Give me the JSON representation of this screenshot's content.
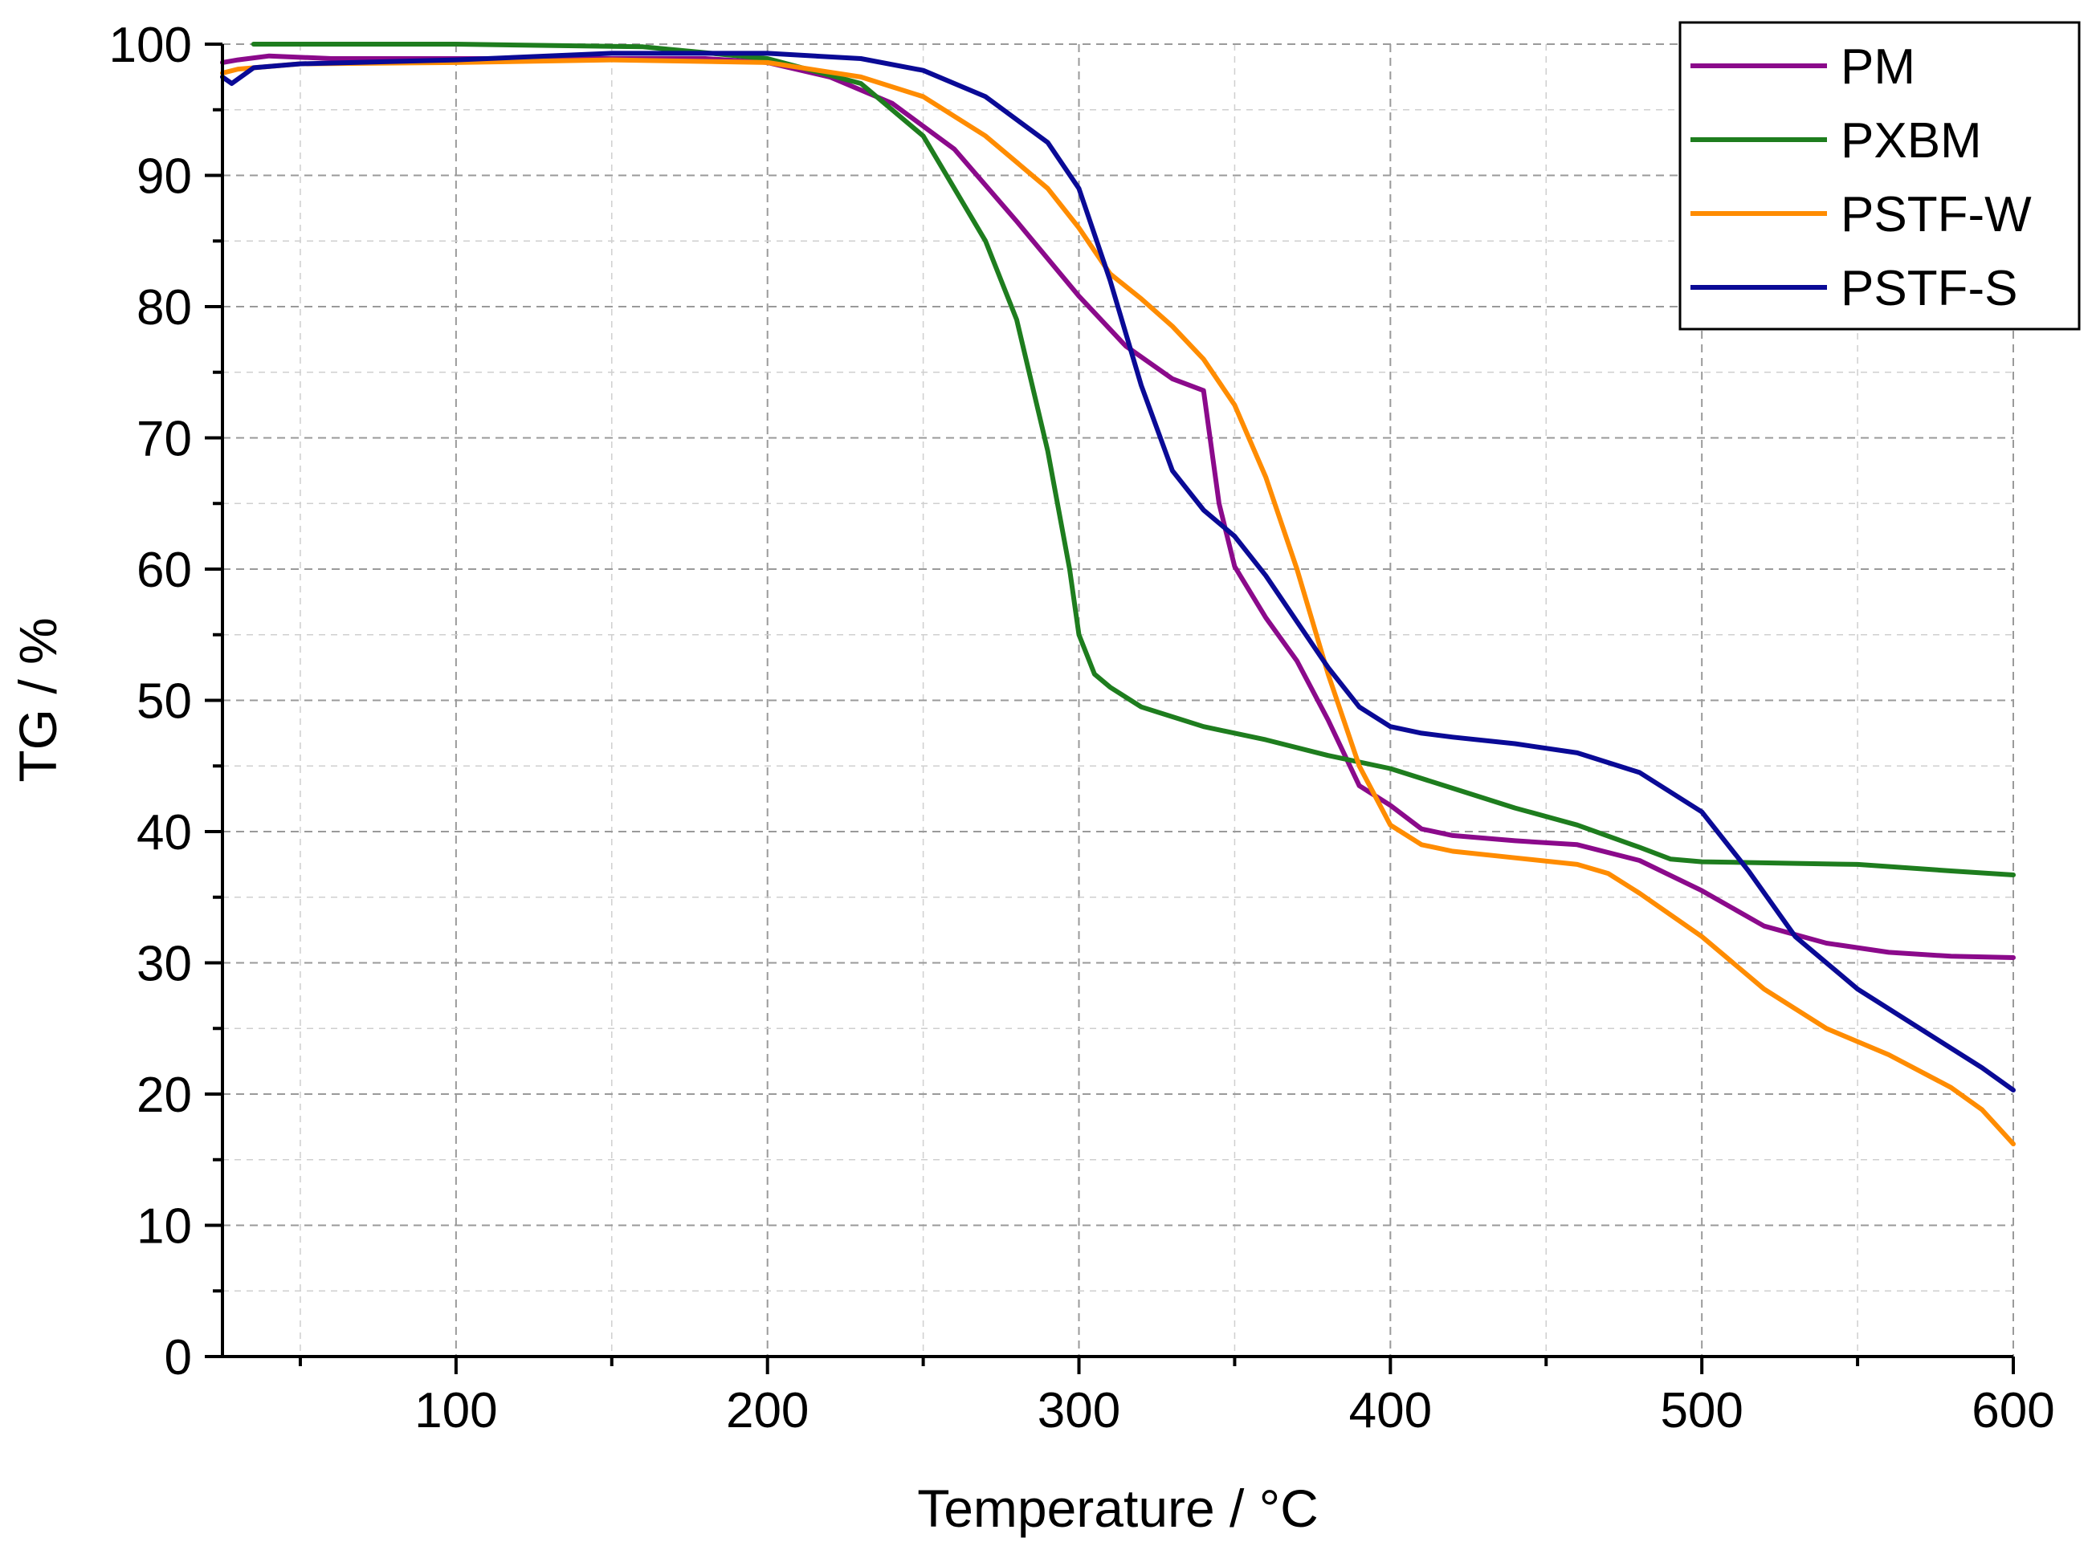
{
  "chart_data": {
    "type": "line",
    "title": "",
    "xlabel": "Temperature / °C",
    "ylabel": "TG / %",
    "xlim": [
      25,
      600
    ],
    "ylim": [
      0,
      100
    ],
    "x_ticks": [
      100,
      200,
      300,
      400,
      500,
      600
    ],
    "x_minor_ticks": [
      50,
      150,
      250,
      350,
      450,
      550
    ],
    "y_ticks": [
      0,
      10,
      20,
      30,
      40,
      50,
      60,
      70,
      80,
      90,
      100
    ],
    "y_minor_ticks": [
      5,
      15,
      25,
      35,
      45,
      55,
      65,
      75,
      85,
      95
    ],
    "grid": true,
    "legend_position": "top-right",
    "series": [
      {
        "name": "PM",
        "color": "#8b0a8b",
        "points": [
          [
            25,
            98.6
          ],
          [
            30,
            98.8
          ],
          [
            40,
            99.1
          ],
          [
            60,
            98.9
          ],
          [
            100,
            98.9
          ],
          [
            150,
            98.9
          ],
          [
            180,
            98.9
          ],
          [
            200,
            98.6
          ],
          [
            220,
            97.5
          ],
          [
            240,
            95.5
          ],
          [
            260,
            92
          ],
          [
            280,
            86.5
          ],
          [
            300,
            80.8
          ],
          [
            315,
            77
          ],
          [
            330,
            74.5
          ],
          [
            340,
            73.6
          ],
          [
            345,
            65
          ],
          [
            350,
            60.2
          ],
          [
            360,
            56.3
          ],
          [
            370,
            53
          ],
          [
            380,
            48.5
          ],
          [
            390,
            43.5
          ],
          [
            400,
            42
          ],
          [
            410,
            40.2
          ],
          [
            420,
            39.7
          ],
          [
            440,
            39.3
          ],
          [
            460,
            39
          ],
          [
            480,
            37.8
          ],
          [
            500,
            35.5
          ],
          [
            520,
            32.8
          ],
          [
            540,
            31.5
          ],
          [
            560,
            30.8
          ],
          [
            580,
            30.5
          ],
          [
            600,
            30.4
          ]
        ]
      },
      {
        "name": "PXBM",
        "color": "#1e7d1e",
        "points": [
          [
            35,
            100
          ],
          [
            100,
            100
          ],
          [
            160,
            99.8
          ],
          [
            200,
            98.9
          ],
          [
            230,
            97
          ],
          [
            250,
            93
          ],
          [
            260,
            89
          ],
          [
            270,
            85
          ],
          [
            280,
            79
          ],
          [
            290,
            69
          ],
          [
            297,
            60
          ],
          [
            300,
            55
          ],
          [
            305,
            52
          ],
          [
            310,
            51
          ],
          [
            320,
            49.5
          ],
          [
            340,
            48
          ],
          [
            360,
            47
          ],
          [
            380,
            45.8
          ],
          [
            400,
            44.8
          ],
          [
            420,
            43.3
          ],
          [
            440,
            41.8
          ],
          [
            460,
            40.5
          ],
          [
            480,
            38.8
          ],
          [
            490,
            37.9
          ],
          [
            500,
            37.7
          ],
          [
            550,
            37.5
          ],
          [
            580,
            37
          ],
          [
            600,
            36.7
          ]
        ]
      },
      {
        "name": "PSTF-W",
        "color": "#ff8c00",
        "points": [
          [
            25,
            97.8
          ],
          [
            30,
            98.1
          ],
          [
            50,
            98.5
          ],
          [
            100,
            98.6
          ],
          [
            150,
            98.8
          ],
          [
            200,
            98.6
          ],
          [
            230,
            97.5
          ],
          [
            250,
            96
          ],
          [
            270,
            93
          ],
          [
            290,
            89
          ],
          [
            300,
            86
          ],
          [
            310,
            82.5
          ],
          [
            320,
            80.6
          ],
          [
            330,
            78.5
          ],
          [
            340,
            76
          ],
          [
            350,
            72.5
          ],
          [
            360,
            67
          ],
          [
            370,
            60
          ],
          [
            380,
            52
          ],
          [
            390,
            45
          ],
          [
            400,
            40.5
          ],
          [
            410,
            39
          ],
          [
            420,
            38.5
          ],
          [
            440,
            38
          ],
          [
            460,
            37.5
          ],
          [
            470,
            36.8
          ],
          [
            480,
            35.3
          ],
          [
            500,
            32
          ],
          [
            520,
            28
          ],
          [
            540,
            25
          ],
          [
            560,
            23
          ],
          [
            580,
            20.5
          ],
          [
            590,
            18.8
          ],
          [
            600,
            16.2
          ]
        ]
      },
      {
        "name": "PSTF-S",
        "color": "#0a0a96",
        "points": [
          [
            25,
            97.5
          ],
          [
            28,
            97
          ],
          [
            35,
            98.2
          ],
          [
            50,
            98.5
          ],
          [
            100,
            98.8
          ],
          [
            150,
            99.3
          ],
          [
            200,
            99.3
          ],
          [
            230,
            98.9
          ],
          [
            250,
            98
          ],
          [
            270,
            96
          ],
          [
            290,
            92.5
          ],
          [
            300,
            89
          ],
          [
            310,
            82
          ],
          [
            320,
            74
          ],
          [
            330,
            67.5
          ],
          [
            340,
            64.5
          ],
          [
            350,
            62.5
          ],
          [
            360,
            59.5
          ],
          [
            370,
            56
          ],
          [
            380,
            52.5
          ],
          [
            390,
            49.5
          ],
          [
            400,
            48
          ],
          [
            410,
            47.5
          ],
          [
            420,
            47.2
          ],
          [
            440,
            46.7
          ],
          [
            460,
            46
          ],
          [
            480,
            44.5
          ],
          [
            500,
            41.5
          ],
          [
            515,
            37
          ],
          [
            530,
            32
          ],
          [
            550,
            28
          ],
          [
            570,
            25
          ],
          [
            590,
            22
          ],
          [
            600,
            20.3
          ]
        ]
      }
    ]
  }
}
